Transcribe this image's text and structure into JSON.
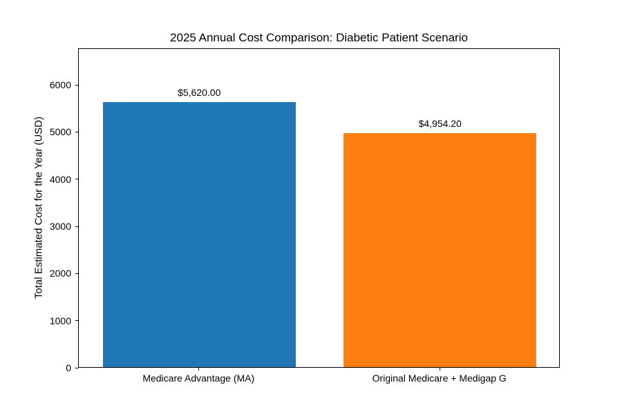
{
  "figure": {
    "background_color": "#ffffff",
    "text_color": "#000000",
    "spine_color": "#000000"
  },
  "chart_data": {
    "type": "bar",
    "title": "2025 Annual Cost Comparison: Diabetic Patient Scenario",
    "xlabel": "",
    "ylabel": "Total Estimated Cost for the Year (USD)",
    "categories": [
      "Medicare Advantage (MA)",
      "Original Medicare + Medigap G"
    ],
    "values": [
      5620.0,
      4954.2
    ],
    "bar_labels": [
      "$5,620.00",
      "$4,954.20"
    ],
    "bar_colors": [
      "#1f77b4",
      "#ff7f0e"
    ],
    "ylim": [
      0,
      6776
    ],
    "yticks": [
      0,
      1000,
      2000,
      3000,
      4000,
      5000,
      6000
    ],
    "ytick_labels": [
      "0",
      "1000",
      "2000",
      "3000",
      "4000",
      "5000",
      "6000"
    ],
    "bar_width_fraction": 0.8,
    "grid": false,
    "legend": null
  }
}
